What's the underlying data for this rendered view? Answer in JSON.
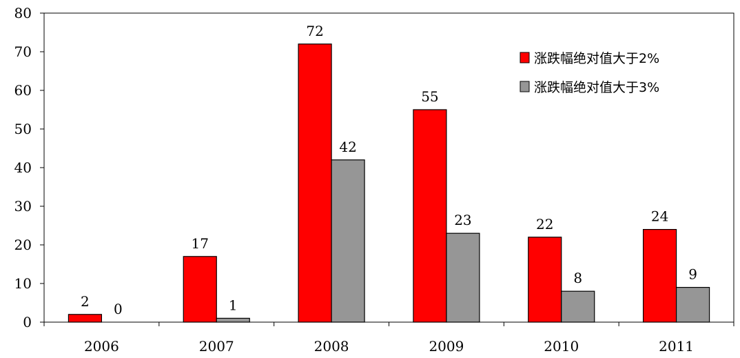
{
  "chart_data": {
    "type": "bar",
    "categories": [
      "2006",
      "2007",
      "2008",
      "2009",
      "2010",
      "2011"
    ],
    "series": [
      {
        "name": "涨跌幅绝对值大于2%",
        "color": "#ff0000",
        "values": [
          2,
          17,
          72,
          55,
          22,
          24
        ]
      },
      {
        "name": "涨跌幅绝对值大于3%",
        "color": "#969696",
        "values": [
          0,
          1,
          42,
          23,
          8,
          9
        ]
      }
    ],
    "ylim": [
      0,
      80
    ],
    "yticks": [
      0,
      10,
      20,
      30,
      40,
      50,
      60,
      70,
      80
    ],
    "grid": false,
    "legend_position": "top-right",
    "title": "",
    "xlabel": "",
    "ylabel": ""
  }
}
